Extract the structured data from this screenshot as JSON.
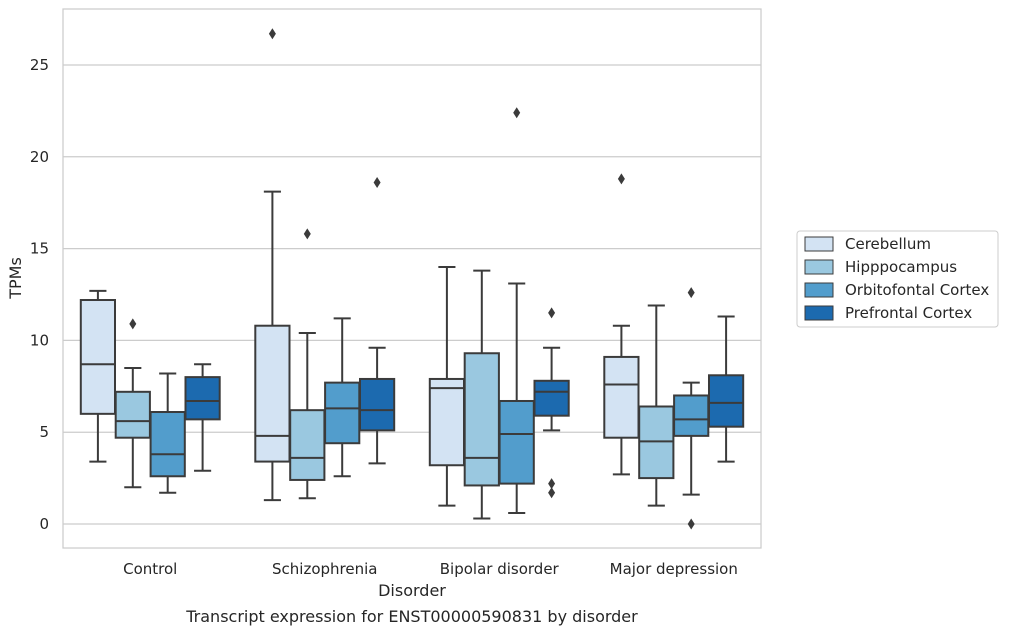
{
  "chart_data": {
    "type": "box",
    "caption": "Transcript expression for ENST00000590831 by disorder",
    "xlabel": "Disorder",
    "ylabel": "TPMs",
    "ylim": [
      -1.3,
      28
    ],
    "yticks": [
      0,
      5,
      10,
      15,
      20,
      25
    ],
    "grid": true,
    "legend_position": "right",
    "categories": [
      "Control",
      "Schizophrenia",
      "Bipolar disorder",
      "Major depression"
    ],
    "series": [
      {
        "name": "Cerebellum",
        "color": "#d3e3f3",
        "boxes": [
          {
            "whisker_low": 3.4,
            "q1": 6.0,
            "median": 8.7,
            "q3": 12.2,
            "whisker_high": 12.7,
            "outliers": []
          },
          {
            "whisker_low": 1.3,
            "q1": 3.4,
            "median": 4.8,
            "q3": 10.8,
            "whisker_high": 18.1,
            "outliers": [
              26.7
            ]
          },
          {
            "whisker_low": 1.0,
            "q1": 3.2,
            "median": 7.4,
            "q3": 7.9,
            "whisker_high": 14.0,
            "outliers": []
          },
          {
            "whisker_low": 2.7,
            "q1": 4.7,
            "median": 7.6,
            "q3": 9.1,
            "whisker_high": 10.8,
            "outliers": [
              18.8
            ]
          }
        ]
      },
      {
        "name": "Hipppocampus",
        "color": "#9ac8e0",
        "boxes": [
          {
            "whisker_low": 2.0,
            "q1": 4.7,
            "median": 5.6,
            "q3": 7.2,
            "whisker_high": 8.5,
            "outliers": [
              10.9
            ]
          },
          {
            "whisker_low": 1.4,
            "q1": 2.4,
            "median": 3.6,
            "q3": 6.2,
            "whisker_high": 10.4,
            "outliers": [
              15.8
            ]
          },
          {
            "whisker_low": 0.3,
            "q1": 2.1,
            "median": 3.6,
            "q3": 9.3,
            "whisker_high": 13.8,
            "outliers": []
          },
          {
            "whisker_low": 1.0,
            "q1": 2.5,
            "median": 4.5,
            "q3": 6.4,
            "whisker_high": 11.9,
            "outliers": []
          }
        ]
      },
      {
        "name": "Orbitofontal Cortex",
        "color": "#529dcc",
        "boxes": [
          {
            "whisker_low": 1.7,
            "q1": 2.6,
            "median": 3.8,
            "q3": 6.1,
            "whisker_high": 8.2,
            "outliers": []
          },
          {
            "whisker_low": 2.6,
            "q1": 4.4,
            "median": 6.3,
            "q3": 7.7,
            "whisker_high": 11.2,
            "outliers": []
          },
          {
            "whisker_low": 0.6,
            "q1": 2.2,
            "median": 4.9,
            "q3": 6.7,
            "whisker_high": 13.1,
            "outliers": [
              22.4
            ]
          },
          {
            "whisker_low": 1.6,
            "q1": 4.8,
            "median": 5.7,
            "q3": 7.0,
            "whisker_high": 7.7,
            "outliers": [
              0.0,
              12.6
            ]
          }
        ]
      },
      {
        "name": "Prefrontal Cortex",
        "color": "#1c6aaf",
        "boxes": [
          {
            "whisker_low": 2.9,
            "q1": 5.7,
            "median": 6.7,
            "q3": 8.0,
            "whisker_high": 8.7,
            "outliers": []
          },
          {
            "whisker_low": 3.3,
            "q1": 5.1,
            "median": 6.2,
            "q3": 7.9,
            "whisker_high": 9.6,
            "outliers": [
              18.6
            ]
          },
          {
            "whisker_low": 5.1,
            "q1": 5.9,
            "median": 7.2,
            "q3": 7.8,
            "whisker_high": 9.6,
            "outliers": [
              1.7,
              2.2,
              11.5
            ]
          },
          {
            "whisker_low": 3.4,
            "q1": 5.3,
            "median": 6.6,
            "q3": 8.1,
            "whisker_high": 11.3,
            "outliers": []
          }
        ]
      }
    ]
  }
}
